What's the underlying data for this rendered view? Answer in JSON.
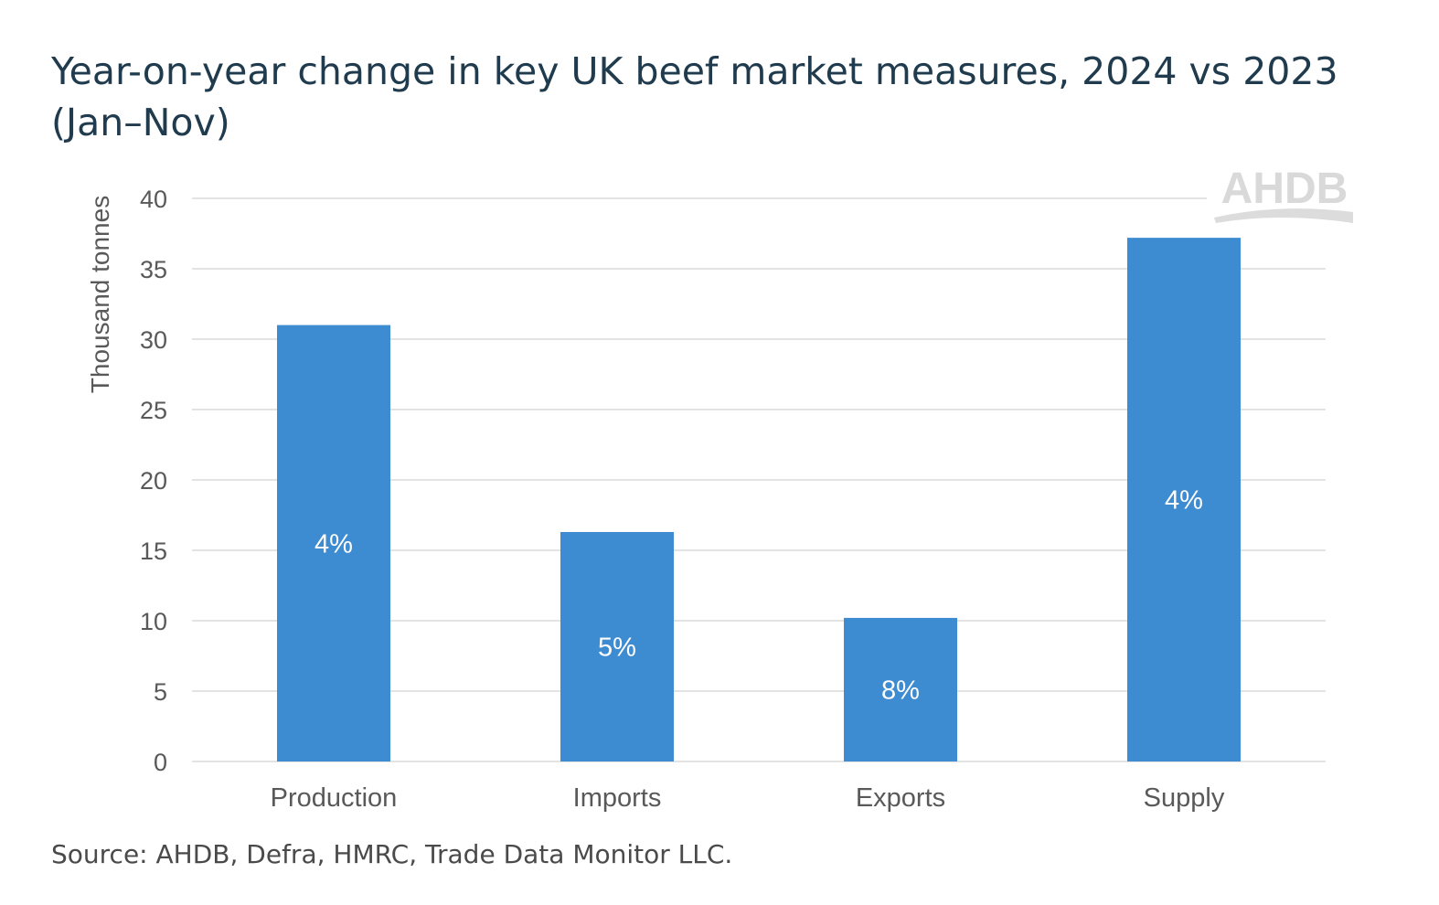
{
  "chart_data": {
    "type": "bar",
    "title": "Year-on-year change in key UK beef market measures, 2024 vs 2023 (Jan–Nov)",
    "xlabel": "",
    "ylabel": "Thousand tonnes",
    "ylim": [
      0,
      40
    ],
    "yticks": [
      0,
      5,
      10,
      15,
      20,
      25,
      30,
      35,
      40
    ],
    "grid": true,
    "categories": [
      "Production",
      "Imports",
      "Exports",
      "Supply"
    ],
    "values": [
      31.0,
      16.3,
      10.2,
      37.2
    ],
    "data_labels": [
      "4%",
      "5%",
      "8%",
      "4%"
    ],
    "bar_color": "#3d8bd0",
    "logo": "AHDB",
    "source": "Source: AHDB, Defra, HMRC, Trade Data Monitor LLC."
  }
}
